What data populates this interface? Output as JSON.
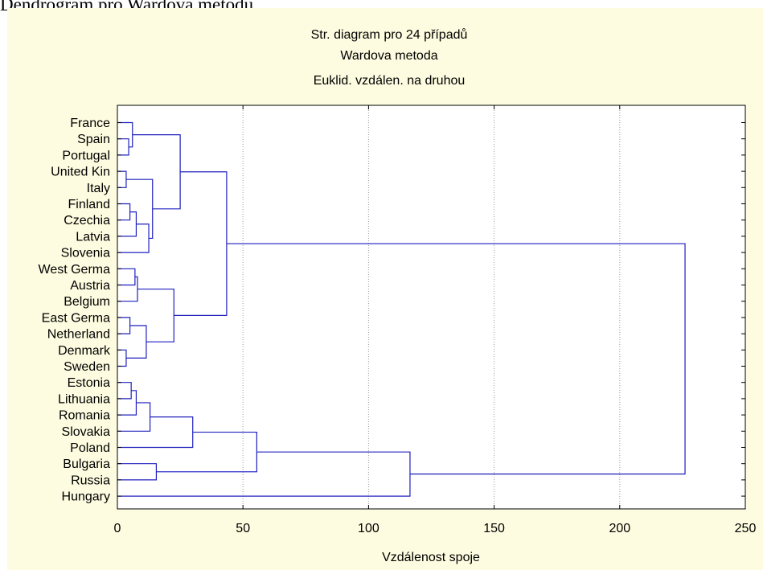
{
  "page": {
    "caption": "Dendrogram pro Wardova metodu."
  },
  "chart_data": {
    "type": "dendrogram",
    "title": "Str. diagram pro 24 případů",
    "subtitle": "Wardova metoda",
    "subtitle2": "Euklid. vzdálen. na druhou",
    "xlabel": "Vzdálenost spoje",
    "xlim": [
      0,
      250
    ],
    "xticks": [
      0,
      50,
      100,
      150,
      200,
      250
    ],
    "grid": "vertical dotted",
    "orientation": "horizontal",
    "leaves": [
      "France",
      "Spain",
      "Portugal",
      "United Kin",
      "Italy",
      "Finland",
      "Czechia",
      "Latvia",
      "Slovenia",
      "West Germa",
      "Austria",
      "Belgium",
      "East Germa",
      "Netherland",
      "Denmark",
      "Sweden",
      "Estonia",
      "Lithuania",
      "Romania",
      "Slovakia",
      "Poland",
      "Bulgaria",
      "Russia",
      "Hungary"
    ],
    "merges": [
      {
        "id": "N1",
        "children": [
          "Spain",
          "Portugal"
        ],
        "height": 4.5
      },
      {
        "id": "N2",
        "children": [
          "France",
          "N1"
        ],
        "height": 6
      },
      {
        "id": "N3",
        "children": [
          "United Kin",
          "Italy"
        ],
        "height": 3.5
      },
      {
        "id": "N4",
        "children": [
          "Finland",
          "Czechia"
        ],
        "height": 5
      },
      {
        "id": "N5",
        "children": [
          "N4",
          "Latvia"
        ],
        "height": 7.5
      },
      {
        "id": "N6",
        "children": [
          "N5",
          "Slovenia"
        ],
        "height": 12.5
      },
      {
        "id": "N7",
        "children": [
          "N3",
          "N6"
        ],
        "height": 14
      },
      {
        "id": "N8",
        "children": [
          "N2",
          "N7"
        ],
        "height": 25
      },
      {
        "id": "N9",
        "children": [
          "West Germa",
          "Austria"
        ],
        "height": 7
      },
      {
        "id": "N10",
        "children": [
          "N9",
          "Belgium"
        ],
        "height": 8
      },
      {
        "id": "N11",
        "children": [
          "East Germa",
          "Netherland"
        ],
        "height": 5
      },
      {
        "id": "N12",
        "children": [
          "Denmark",
          "Sweden"
        ],
        "height": 3.5
      },
      {
        "id": "N13",
        "children": [
          "N11",
          "N12"
        ],
        "height": 11.5
      },
      {
        "id": "N14",
        "children": [
          "N10",
          "N13"
        ],
        "height": 22.5
      },
      {
        "id": "N15",
        "children": [
          "N8",
          "N14"
        ],
        "height": 43.5
      },
      {
        "id": "N16",
        "children": [
          "Estonia",
          "Lithuania"
        ],
        "height": 5.5
      },
      {
        "id": "N17",
        "children": [
          "N16",
          "Romania"
        ],
        "height": 7.5
      },
      {
        "id": "N18",
        "children": [
          "N17",
          "Slovakia"
        ],
        "height": 13
      },
      {
        "id": "N19",
        "children": [
          "N18",
          "Poland"
        ],
        "height": 30
      },
      {
        "id": "N20",
        "children": [
          "Bulgaria",
          "Russia"
        ],
        "height": 15.5
      },
      {
        "id": "N21",
        "children": [
          "N19",
          "N20"
        ],
        "height": 55.5
      },
      {
        "id": "N22",
        "children": [
          "N21",
          "Hungary"
        ],
        "height": 116.5
      },
      {
        "id": "N23",
        "children": [
          "N15",
          "N22"
        ],
        "height": 226
      }
    ],
    "colors": {
      "panel_background": "#fdfce0",
      "plot_background": "#ffffff",
      "link": "#1f1fbf",
      "grid": "#9a9a9a",
      "frame": "#000000"
    }
  }
}
